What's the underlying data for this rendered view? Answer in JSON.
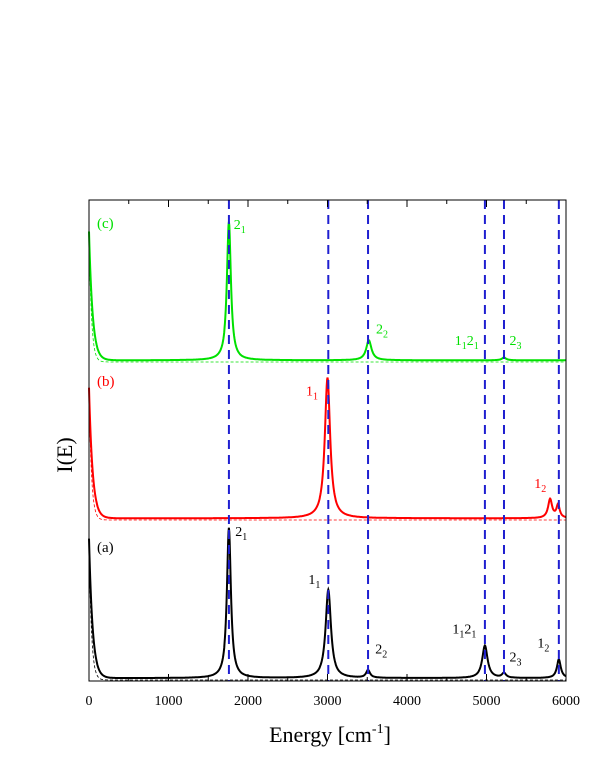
{
  "chart_data": {
    "type": "line",
    "xlabel": "Energy [cm",
    "xlabel_sup": "-1",
    "xlabel_end": "]",
    "ylabel": "I(E)",
    "xlim": [
      0,
      6000
    ],
    "xticks": [
      0,
      1000,
      2000,
      3000,
      4000,
      5000,
      6000
    ],
    "xtick_labels": [
      "0",
      "1000",
      "2000",
      "3000",
      "4000",
      "5000",
      "6000"
    ],
    "grid": false,
    "vlines": [
      1760,
      3010,
      3510,
      4980,
      5220,
      5910
    ],
    "vline_color": "#1f1fd0",
    "panels": [
      {
        "label": "(a)",
        "color": "#000000",
        "peaks": [
          {
            "x": 1760,
            "h": 0.97,
            "w": 30
          },
          {
            "x": 3010,
            "h": 0.57,
            "w": 40
          },
          {
            "x": 3510,
            "h": 0.05,
            "w": 30
          },
          {
            "x": 4980,
            "h": 0.21,
            "w": 40
          },
          {
            "x": 5220,
            "h": 0.03,
            "w": 30
          },
          {
            "x": 5910,
            "h": 0.12,
            "w": 30
          }
        ],
        "annotations": [
          {
            "base": "2",
            "sub": "1",
            "x": 1840,
            "y": 0.93
          },
          {
            "base": "1",
            "sub": "1",
            "x": 2760,
            "y": 0.62
          },
          {
            "base": "2",
            "sub": "2",
            "x": 3600,
            "y": 0.17
          },
          {
            "base": "1",
            "sub": "1",
            "base2": "2",
            "sub2": "1",
            "x": 4570,
            "y": 0.3
          },
          {
            "base": "2",
            "sub": "3",
            "x": 5290,
            "y": 0.12
          },
          {
            "base": "1",
            "sub": "2",
            "x": 5640,
            "y": 0.21
          }
        ]
      },
      {
        "label": "(b)",
        "color": "#ff0000",
        "peaks": [
          {
            "x": 3000,
            "h": 0.97,
            "w": 40
          },
          {
            "x": 5800,
            "h": 0.13,
            "w": 30
          },
          {
            "x": 5900,
            "h": 0.09,
            "w": 25
          }
        ],
        "annotations": [
          {
            "base": "1",
            "sub": "1",
            "x": 2730,
            "y": 0.86
          },
          {
            "base": "1",
            "sub": "2",
            "x": 5600,
            "y": 0.22
          }
        ]
      },
      {
        "label": "(c)",
        "color": "#00e000",
        "peaks": [
          {
            "x": 1760,
            "h": 0.97,
            "w": 30
          },
          {
            "x": 3520,
            "h": 0.14,
            "w": 40
          },
          {
            "x": 5220,
            "h": 0.02,
            "w": 30
          }
        ],
        "annotations": [
          {
            "base": "2",
            "sub": "1",
            "x": 1820,
            "y": 0.93
          },
          {
            "base": "2",
            "sub": "2",
            "x": 3610,
            "y": 0.2
          },
          {
            "base": "1",
            "sub": "1",
            "base2": "2",
            "sub2": "1",
            "x": 4600,
            "y": 0.12
          },
          {
            "base": "2",
            "sub": "3",
            "x": 5290,
            "y": 0.12
          }
        ]
      }
    ]
  }
}
